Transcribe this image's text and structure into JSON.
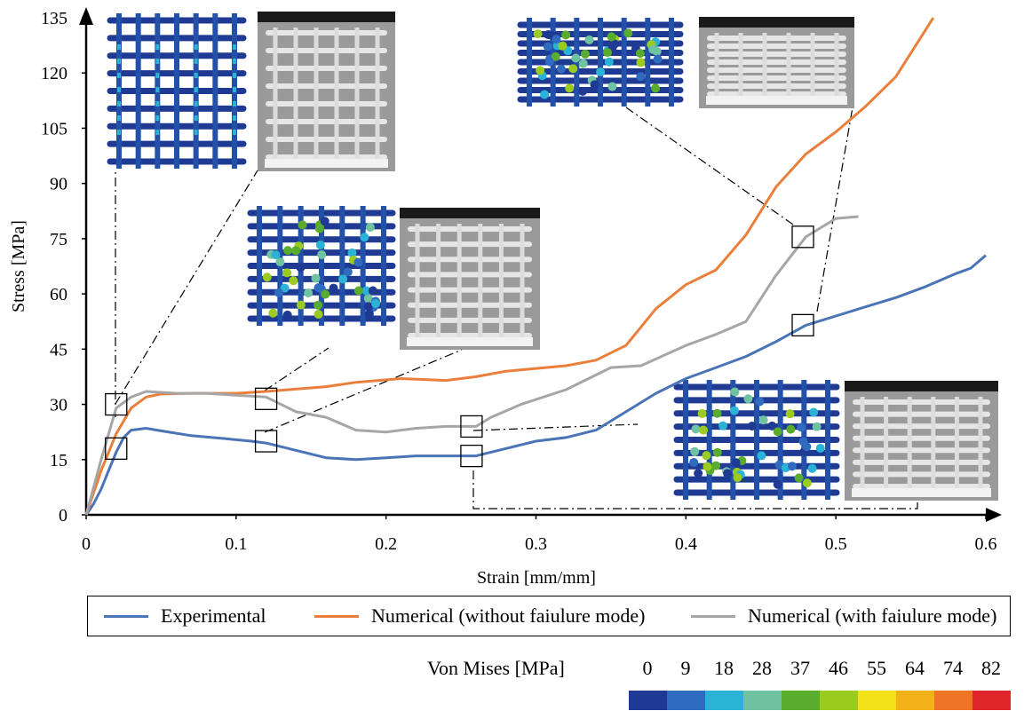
{
  "chart_data": {
    "type": "line",
    "xlabel": "Strain [mm/mm]",
    "ylabel": "Stress [MPa]",
    "xlim": [
      0,
      0.6
    ],
    "ylim": [
      0,
      135
    ],
    "x_ticks": [
      "0",
      "0.1",
      "0.2",
      "0.3",
      "0.4",
      "0.5",
      "0.6"
    ],
    "y_ticks": [
      "0",
      "15",
      "30",
      "45",
      "60",
      "75",
      "90",
      "105",
      "120",
      "135"
    ],
    "grid": false,
    "legend_placement": "bottom",
    "series": [
      {
        "name": "Experimental",
        "color": "#4a74b5",
        "points": [
          [
            0,
            0
          ],
          [
            0.005,
            3
          ],
          [
            0.01,
            7
          ],
          [
            0.015,
            12
          ],
          [
            0.02,
            17
          ],
          [
            0.025,
            21
          ],
          [
            0.03,
            23
          ],
          [
            0.04,
            23.5
          ],
          [
            0.05,
            22.8
          ],
          [
            0.07,
            21.5
          ],
          [
            0.09,
            20.8
          ],
          [
            0.11,
            20
          ],
          [
            0.12,
            19.5
          ],
          [
            0.14,
            17.5
          ],
          [
            0.16,
            15.5
          ],
          [
            0.18,
            15
          ],
          [
            0.2,
            15.5
          ],
          [
            0.22,
            16
          ],
          [
            0.24,
            16
          ],
          [
            0.26,
            16
          ],
          [
            0.28,
            18
          ],
          [
            0.3,
            20
          ],
          [
            0.32,
            21
          ],
          [
            0.34,
            23
          ],
          [
            0.36,
            28
          ],
          [
            0.38,
            33
          ],
          [
            0.4,
            37
          ],
          [
            0.42,
            40
          ],
          [
            0.44,
            43
          ],
          [
            0.46,
            47
          ],
          [
            0.48,
            51.5
          ],
          [
            0.5,
            54
          ],
          [
            0.52,
            56.5
          ],
          [
            0.54,
            59
          ],
          [
            0.56,
            62
          ],
          [
            0.58,
            65.5
          ],
          [
            0.59,
            67
          ],
          [
            0.6,
            70.5
          ]
        ]
      },
      {
        "name": "Numerical (without faiulure mode)",
        "color": "#ea7f3b",
        "points": [
          [
            0,
            0
          ],
          [
            0.01,
            12
          ],
          [
            0.02,
            22
          ],
          [
            0.03,
            29
          ],
          [
            0.04,
            32
          ],
          [
            0.05,
            32.8
          ],
          [
            0.07,
            33
          ],
          [
            0.1,
            33
          ],
          [
            0.12,
            33.5
          ],
          [
            0.16,
            34.8
          ],
          [
            0.18,
            36
          ],
          [
            0.21,
            37
          ],
          [
            0.24,
            36.5
          ],
          [
            0.26,
            37.5
          ],
          [
            0.28,
            39
          ],
          [
            0.32,
            40.5
          ],
          [
            0.34,
            42
          ],
          [
            0.36,
            46
          ],
          [
            0.38,
            56
          ],
          [
            0.4,
            62.5
          ],
          [
            0.42,
            66.5
          ],
          [
            0.44,
            76
          ],
          [
            0.46,
            89
          ],
          [
            0.48,
            98
          ],
          [
            0.5,
            104
          ],
          [
            0.52,
            111
          ],
          [
            0.54,
            119
          ],
          [
            0.565,
            135
          ]
        ]
      },
      {
        "name": "Numerical (with faiulure mode)",
        "color": "#a6a6a6",
        "points": [
          [
            0,
            0
          ],
          [
            0.01,
            15
          ],
          [
            0.02,
            29
          ],
          [
            0.03,
            32
          ],
          [
            0.04,
            33.5
          ],
          [
            0.06,
            33
          ],
          [
            0.08,
            33
          ],
          [
            0.1,
            32.5
          ],
          [
            0.12,
            32
          ],
          [
            0.14,
            28
          ],
          [
            0.16,
            26.5
          ],
          [
            0.18,
            23
          ],
          [
            0.2,
            22.5
          ],
          [
            0.22,
            23.5
          ],
          [
            0.24,
            24
          ],
          [
            0.26,
            24
          ],
          [
            0.27,
            26.5
          ],
          [
            0.29,
            30
          ],
          [
            0.32,
            34
          ],
          [
            0.35,
            40
          ],
          [
            0.37,
            40.5
          ],
          [
            0.4,
            46
          ],
          [
            0.42,
            49
          ],
          [
            0.44,
            52.5
          ],
          [
            0.46,
            65
          ],
          [
            0.48,
            75.5
          ],
          [
            0.5,
            80.5
          ],
          [
            0.515,
            81
          ]
        ]
      }
    ],
    "colorbar": {
      "title": "Von Mises [MPa]",
      "ticks": [
        "0",
        "9",
        "18",
        "28",
        "37",
        "46",
        "55",
        "64",
        "74",
        "82"
      ],
      "colors": [
        "#1f3a93",
        "#2f6cc0",
        "#2ab3d6",
        "#6fc3a0",
        "#5aac2e",
        "#9acb1e",
        "#f3e21a",
        "#f4b21a",
        "#ee7526",
        "#e0262b"
      ]
    }
  }
}
